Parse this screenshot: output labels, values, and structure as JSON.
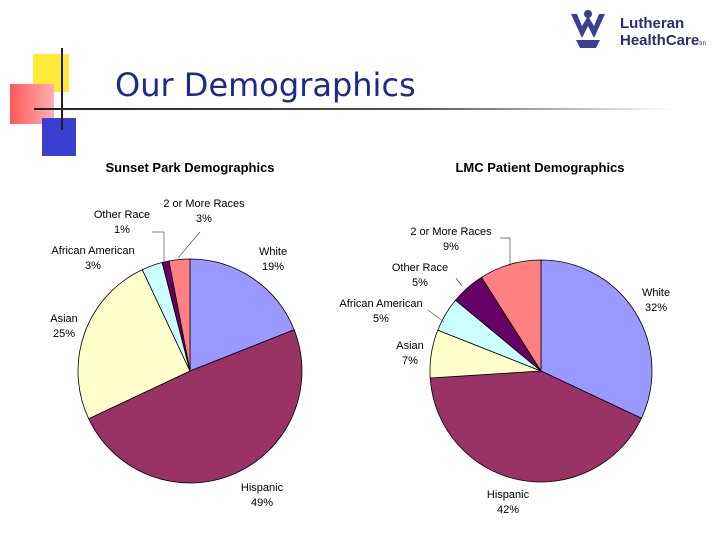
{
  "header": {
    "title": "Our Demographics",
    "logo_line1": "Lutheran",
    "logo_line2": "HealthCare",
    "logo_mark": "tm",
    "logo_icon": "people-figure-icon"
  },
  "colors": {
    "title_text": "#1e2a8a",
    "White": "#9999ff",
    "Hispanic": "#993366",
    "Asian": "#ffffcc",
    "African American": "#ccffff",
    "Other Race": "#660066",
    "2 or More Races": "#ff8080"
  },
  "chart_data": [
    {
      "type": "pie",
      "title": "Sunset Park Demographics",
      "categories": [
        "White",
        "Hispanic",
        "Asian",
        "African American",
        "Other Race",
        "2 or More Races"
      ],
      "values": [
        19,
        49,
        25,
        3,
        1,
        3
      ],
      "value_labels": [
        "19%",
        "49%",
        "25%",
        "3%",
        "1%",
        "3%"
      ]
    },
    {
      "type": "pie",
      "title": "LMC Patient Demographics",
      "categories": [
        "White",
        "Hispanic",
        "Asian",
        "African American",
        "Other Race",
        "2 or More Races"
      ],
      "values": [
        32,
        42,
        7,
        5,
        5,
        9
      ],
      "value_labels": [
        "32%",
        "42%",
        "7%",
        "5%",
        "5%",
        "9%"
      ]
    }
  ]
}
